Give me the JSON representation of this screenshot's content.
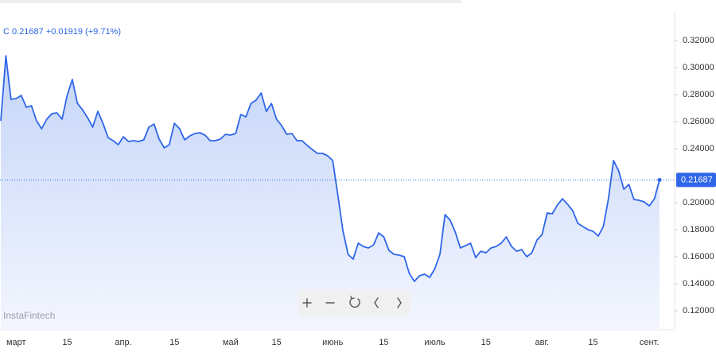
{
  "chart_data": {
    "type": "area",
    "header": "C 0.21687 +0.01919 (+9.71%)",
    "watermark": "InstaFintech",
    "color": "#2f66e8",
    "categories": [
      null,
      null,
      null,
      "март",
      null,
      null,
      null,
      null,
      null,
      null,
      null,
      null,
      null,
      "15",
      null,
      null,
      null,
      null,
      null,
      null,
      null,
      null,
      null,
      null,
      "апр.",
      null,
      null,
      null,
      null,
      null,
      null,
      null,
      null,
      null,
      "15",
      null,
      null,
      null,
      null,
      null,
      null,
      null,
      null,
      null,
      null,
      "май",
      null,
      null,
      null,
      null,
      null,
      null,
      null,
      null,
      "15",
      null,
      null,
      null,
      null,
      null,
      null,
      null,
      null,
      null,
      null,
      "июнь",
      null,
      null,
      null,
      null,
      null,
      null,
      null,
      null,
      null,
      "15",
      null,
      null,
      null,
      null,
      null,
      null,
      null,
      null,
      null,
      "июль",
      null,
      null,
      null,
      null,
      null,
      null,
      null,
      null,
      null,
      "15",
      null,
      null,
      null,
      null,
      null,
      null,
      null,
      null,
      null,
      null,
      "авг.",
      null,
      null,
      null,
      null,
      null,
      null,
      null,
      null,
      null,
      "15",
      null,
      null,
      null,
      null,
      null,
      null,
      null,
      null,
      null,
      null,
      "сент.",
      null,
      null
    ],
    "values": [
      0.2606,
      0.3088,
      0.2765,
      0.2771,
      0.2794,
      0.2706,
      0.2718,
      0.2606,
      0.2547,
      0.2618,
      0.2659,
      0.2665,
      0.2618,
      0.2794,
      0.2912,
      0.2735,
      0.2688,
      0.2629,
      0.2559,
      0.2676,
      0.2588,
      0.2482,
      0.2459,
      0.2429,
      0.2488,
      0.2453,
      0.2459,
      0.2453,
      0.2465,
      0.2559,
      0.2582,
      0.2471,
      0.2406,
      0.2429,
      0.2588,
      0.2547,
      0.2465,
      0.2494,
      0.2512,
      0.2518,
      0.25,
      0.2459,
      0.2459,
      0.2471,
      0.2506,
      0.25,
      0.2512,
      0.2653,
      0.2635,
      0.2735,
      0.2759,
      0.2812,
      0.2676,
      0.2735,
      0.2618,
      0.2571,
      0.2506,
      0.2512,
      0.2459,
      0.2459,
      0.2424,
      0.2394,
      0.2365,
      0.2365,
      0.2347,
      0.2312,
      0.2059,
      0.1794,
      0.1618,
      0.1582,
      0.17,
      0.1676,
      0.1665,
      0.1688,
      0.1776,
      0.1747,
      0.1647,
      0.1618,
      0.1612,
      0.16,
      0.1476,
      0.1418,
      0.1459,
      0.1471,
      0.1447,
      0.1512,
      0.1618,
      0.1912,
      0.1871,
      0.1782,
      0.1665,
      0.1682,
      0.17,
      0.1594,
      0.1641,
      0.1629,
      0.1665,
      0.1676,
      0.17,
      0.1747,
      0.1676,
      0.1641,
      0.1653,
      0.16,
      0.1629,
      0.1724,
      0.1765,
      0.1924,
      0.1918,
      0.1982,
      0.2029,
      0.1988,
      0.1941,
      0.1847,
      0.1824,
      0.18,
      0.1788,
      0.1753,
      0.1824,
      0.2029,
      0.2312,
      0.2235,
      0.21,
      0.2135,
      0.2024,
      0.2018,
      0.2006,
      0.1976,
      0.2029,
      0.21687
    ],
    "ylim": [
      0.1059,
      0.3412
    ],
    "yticks": [
      {
        "value": 0.32,
        "label": "0.32000"
      },
      {
        "value": 0.3,
        "label": "0.30000"
      },
      {
        "value": 0.28,
        "label": "0.28000"
      },
      {
        "value": 0.26,
        "label": "0.26000"
      },
      {
        "value": 0.24,
        "label": "0.24000"
      },
      {
        "value": 0.2,
        "label": "0.20000"
      },
      {
        "value": 0.18,
        "label": "0.18000"
      },
      {
        "value": 0.16,
        "label": "0.16000"
      },
      {
        "value": 0.14,
        "label": "0.14000"
      },
      {
        "value": 0.12,
        "label": "0.12000"
      }
    ]
  }
}
